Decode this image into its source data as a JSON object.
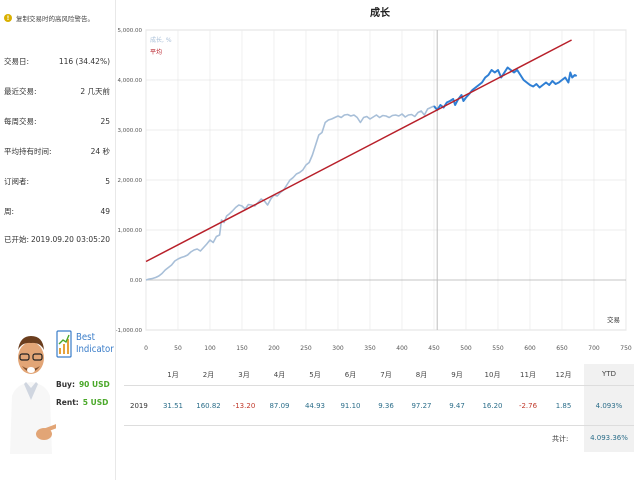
{
  "left_panel": {
    "warning_text": "复制交易时的高风险警告。",
    "stats": [
      {
        "label": "交易日:",
        "value": "116 (34.42%)"
      },
      {
        "label": "最近交易:",
        "value": "2 几天前"
      },
      {
        "label": "每周交易:",
        "value": "25"
      },
      {
        "label": "平均持有时间:",
        "value": "24 秒"
      },
      {
        "label": "订阅者:",
        "value": "5"
      },
      {
        "label": "周:",
        "value": "49"
      },
      {
        "label": "已开始:",
        "value": "2019.09.20 03:05:20"
      }
    ]
  },
  "ad": {
    "brand_line1": "Best",
    "brand_line2": "Indicator",
    "buy_label": "Buy:",
    "buy_value": "90 USD",
    "rent_label": "Rent:",
    "rent_value": "5 USD"
  },
  "chart_data": {
    "type": "line",
    "title": "成长",
    "xlabel": "交易",
    "ylabel": "",
    "xlim": [
      0,
      750
    ],
    "ylim": [
      -1000,
      5000
    ],
    "x_ticks": [
      0,
      50,
      100,
      150,
      200,
      250,
      300,
      350,
      400,
      450,
      500,
      550,
      600,
      650,
      700,
      750
    ],
    "y_ticks": [
      {
        "value": -1000,
        "label": "-1,000.00"
      },
      {
        "value": 0,
        "label": "0.00"
      },
      {
        "value": 1000,
        "label": "1,000.00"
      },
      {
        "value": 2000,
        "label": "2,000.00"
      },
      {
        "value": 3000,
        "label": "3,000.00"
      },
      {
        "value": 4000,
        "label": "4,000.00"
      },
      {
        "value": 5000,
        "label": "5,000.00"
      }
    ],
    "vertical_marker_x": 455,
    "legend_position": "top-left",
    "grid": true,
    "series": [
      {
        "name": "成长, %",
        "color": "#a8bfd8",
        "points": [
          [
            0,
            0
          ],
          [
            5,
            20
          ],
          [
            10,
            30
          ],
          [
            15,
            50
          ],
          [
            20,
            80
          ],
          [
            25,
            130
          ],
          [
            30,
            200
          ],
          [
            35,
            250
          ],
          [
            40,
            300
          ],
          [
            45,
            380
          ],
          [
            50,
            420
          ],
          [
            55,
            450
          ],
          [
            60,
            470
          ],
          [
            65,
            500
          ],
          [
            70,
            560
          ],
          [
            75,
            600
          ],
          [
            80,
            620
          ],
          [
            85,
            580
          ],
          [
            90,
            650
          ],
          [
            95,
            720
          ],
          [
            100,
            800
          ],
          [
            105,
            750
          ],
          [
            110,
            870
          ],
          [
            115,
            900
          ],
          [
            118,
            1200
          ],
          [
            122,
            1150
          ],
          [
            126,
            1280
          ],
          [
            130,
            1320
          ],
          [
            135,
            1380
          ],
          [
            140,
            1450
          ],
          [
            145,
            1500
          ],
          [
            150,
            1480
          ],
          [
            155,
            1420
          ],
          [
            160,
            1510
          ],
          [
            165,
            1500
          ],
          [
            170,
            1480
          ],
          [
            175,
            1550
          ],
          [
            180,
            1620
          ],
          [
            185,
            1580
          ],
          [
            190,
            1500
          ],
          [
            195,
            1620
          ],
          [
            200,
            1700
          ],
          [
            205,
            1680
          ],
          [
            210,
            1750
          ],
          [
            215,
            1800
          ],
          [
            220,
            1900
          ],
          [
            225,
            2000
          ],
          [
            230,
            2050
          ],
          [
            235,
            2120
          ],
          [
            240,
            2150
          ],
          [
            245,
            2200
          ],
          [
            250,
            2300
          ],
          [
            255,
            2350
          ],
          [
            260,
            2500
          ],
          [
            265,
            2700
          ],
          [
            270,
            2900
          ],
          [
            275,
            2950
          ],
          [
            280,
            3150
          ],
          [
            285,
            3200
          ],
          [
            290,
            3220
          ],
          [
            295,
            3250
          ],
          [
            300,
            3280
          ],
          [
            305,
            3250
          ],
          [
            310,
            3300
          ],
          [
            315,
            3310
          ],
          [
            320,
            3280
          ],
          [
            325,
            3300
          ],
          [
            330,
            3250
          ],
          [
            335,
            3150
          ],
          [
            340,
            3250
          ],
          [
            345,
            3270
          ],
          [
            350,
            3220
          ],
          [
            355,
            3260
          ],
          [
            360,
            3300
          ],
          [
            365,
            3250
          ],
          [
            370,
            3290
          ],
          [
            375,
            3280
          ],
          [
            380,
            3250
          ],
          [
            385,
            3290
          ],
          [
            390,
            3300
          ],
          [
            395,
            3280
          ],
          [
            400,
            3320
          ],
          [
            405,
            3260
          ],
          [
            410,
            3300
          ],
          [
            415,
            3310
          ],
          [
            420,
            3270
          ],
          [
            425,
            3350
          ],
          [
            430,
            3380
          ],
          [
            435,
            3300
          ],
          [
            440,
            3420
          ],
          [
            445,
            3450
          ],
          [
            450,
            3480
          ]
        ]
      },
      {
        "name": "",
        "color": "#2f7fd4",
        "points": [
          [
            450,
            3480
          ],
          [
            455,
            3400
          ],
          [
            460,
            3500
          ],
          [
            465,
            3450
          ],
          [
            470,
            3550
          ],
          [
            475,
            3580
          ],
          [
            480,
            3620
          ],
          [
            483,
            3500
          ],
          [
            487,
            3600
          ],
          [
            490,
            3650
          ],
          [
            493,
            3700
          ],
          [
            496,
            3580
          ],
          [
            500,
            3650
          ],
          [
            505,
            3720
          ],
          [
            510,
            3800
          ],
          [
            515,
            3850
          ],
          [
            520,
            3900
          ],
          [
            525,
            3950
          ],
          [
            530,
            4050
          ],
          [
            535,
            4100
          ],
          [
            540,
            4200
          ],
          [
            545,
            4150
          ],
          [
            550,
            4200
          ],
          [
            555,
            4050
          ],
          [
            560,
            4150
          ],
          [
            565,
            4250
          ],
          [
            570,
            4200
          ],
          [
            575,
            4150
          ],
          [
            580,
            4200
          ],
          [
            585,
            4100
          ],
          [
            590,
            4000
          ],
          [
            595,
            3950
          ],
          [
            600,
            3900
          ],
          [
            605,
            3870
          ],
          [
            610,
            3920
          ],
          [
            615,
            3850
          ],
          [
            620,
            3900
          ],
          [
            625,
            3950
          ],
          [
            630,
            3900
          ],
          [
            635,
            3980
          ],
          [
            640,
            3920
          ],
          [
            645,
            3950
          ],
          [
            650,
            4000
          ],
          [
            655,
            4050
          ],
          [
            660,
            3950
          ],
          [
            663,
            4150
          ],
          [
            666,
            4050
          ],
          [
            670,
            4100
          ],
          [
            673,
            4080
          ]
        ]
      },
      {
        "name": "平均",
        "color": "#b8202a",
        "points": [
          [
            0,
            370
          ],
          [
            665,
            4800
          ]
        ]
      }
    ]
  },
  "table": {
    "months": [
      "1月",
      "2月",
      "3月",
      "4月",
      "5月",
      "6月",
      "7月",
      "8月",
      "9月",
      "10月",
      "11月",
      "12月"
    ],
    "ytd_label": "YTD",
    "year": "2019",
    "values": [
      "31.51",
      "160.82",
      "-13.20",
      "87.09",
      "44.93",
      "91.10",
      "9.36",
      "97.27",
      "9.47",
      "16.20",
      "-2.76",
      "1.85"
    ],
    "ytd_value": "4.093%",
    "total_label": "共计:",
    "total_value": "4.093.36%"
  }
}
